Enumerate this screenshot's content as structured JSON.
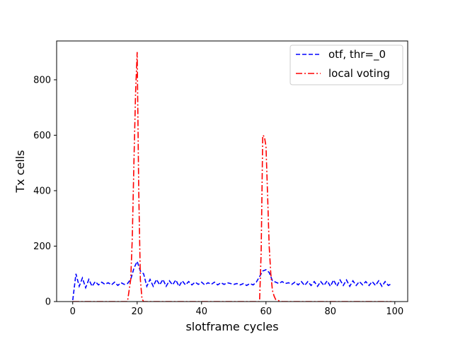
{
  "chart_data": {
    "type": "line",
    "xlabel": "slotframe cycles",
    "ylabel": "Tx cells",
    "xlim": [
      -5,
      104
    ],
    "ylim": [
      0,
      940
    ],
    "xticks": [
      0,
      20,
      40,
      60,
      80,
      100
    ],
    "yticks": [
      0,
      200,
      400,
      600,
      800
    ],
    "grid": false,
    "legend_position": "top-right",
    "series": [
      {
        "name": "otf, thr=_0",
        "color": "#0000ff",
        "style": "dashed",
        "x": [
          0,
          1,
          2,
          3,
          4,
          5,
          6,
          7,
          8,
          9,
          10,
          11,
          12,
          13,
          14,
          15,
          16,
          17,
          18,
          19,
          20,
          21,
          22,
          23,
          24,
          25,
          26,
          27,
          28,
          29,
          30,
          31,
          32,
          33,
          34,
          35,
          36,
          37,
          38,
          39,
          40,
          41,
          42,
          43,
          44,
          45,
          46,
          47,
          48,
          49,
          50,
          51,
          52,
          53,
          54,
          55,
          56,
          57,
          58,
          59,
          60,
          61,
          62,
          63,
          64,
          65,
          66,
          67,
          68,
          69,
          70,
          71,
          72,
          73,
          74,
          75,
          76,
          77,
          78,
          79,
          80,
          81,
          82,
          83,
          84,
          85,
          86,
          87,
          88,
          89,
          90,
          91,
          92,
          93,
          94,
          95,
          96,
          97,
          98,
          99
        ],
        "y": [
          5,
          100,
          55,
          85,
          50,
          80,
          55,
          72,
          60,
          70,
          62,
          68,
          60,
          70,
          58,
          68,
          62,
          65,
          80,
          120,
          145,
          110,
          100,
          55,
          80,
          55,
          80,
          60,
          80,
          55,
          75,
          60,
          78,
          55,
          75,
          60,
          72,
          60,
          70,
          62,
          70,
          60,
          68,
          62,
          70,
          60,
          68,
          62,
          68,
          65,
          62,
          65,
          60,
          65,
          58,
          65,
          60,
          70,
          90,
          110,
          115,
          105,
          75,
          70,
          65,
          72,
          65,
          68,
          62,
          70,
          60,
          72,
          58,
          72,
          58,
          72,
          55,
          72,
          58,
          75,
          55,
          78,
          55,
          78,
          58,
          78,
          55,
          75,
          58,
          72,
          60,
          72,
          58,
          72,
          58,
          75,
          55,
          72,
          58,
          65
        ]
      },
      {
        "name": "local voting",
        "color": "#ff0000",
        "style": "dashdot",
        "x": [
          0,
          17,
          18,
          18.5,
          19,
          19.5,
          20,
          20.5,
          21,
          21.5,
          22,
          58,
          58.5,
          59,
          59.5,
          60,
          60.5,
          61,
          61.5,
          62,
          62.5,
          63,
          64,
          65,
          99
        ],
        "y": [
          0,
          0,
          80,
          230,
          500,
          750,
          900,
          400,
          80,
          10,
          0,
          0,
          180,
          600,
          595,
          560,
          380,
          200,
          100,
          40,
          20,
          8,
          3,
          0,
          0
        ]
      }
    ]
  }
}
